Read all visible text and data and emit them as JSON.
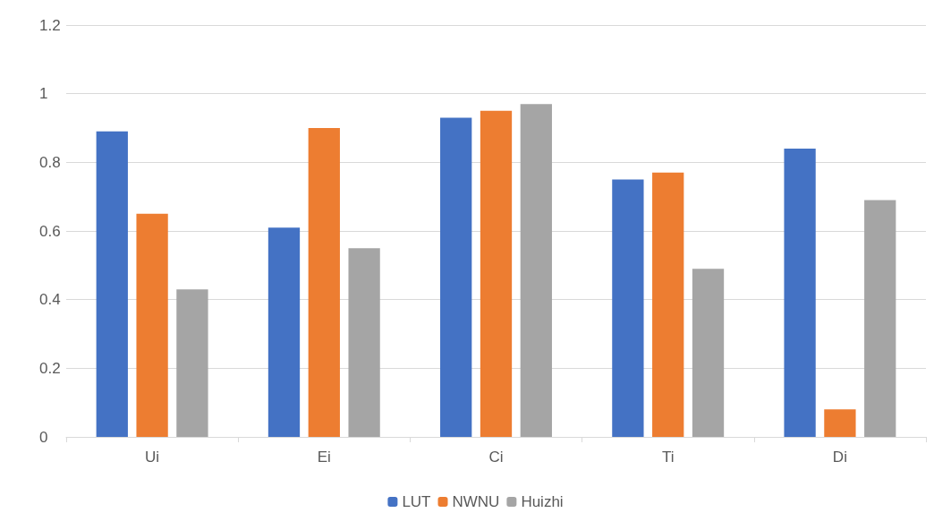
{
  "chart_data": {
    "type": "bar",
    "categories": [
      "Ui",
      "Ei",
      "Ci",
      "Ti",
      "Di"
    ],
    "series": [
      {
        "name": "LUT",
        "color": "#4472c4",
        "values": [
          0.89,
          0.61,
          0.93,
          0.75,
          0.84
        ]
      },
      {
        "name": "NWNU",
        "color": "#ed7d31",
        "values": [
          0.65,
          0.9,
          0.95,
          0.77,
          0.08
        ]
      },
      {
        "name": "Huizhi",
        "color": "#a5a5a5",
        "values": [
          0.43,
          0.55,
          0.97,
          0.49,
          0.69
        ]
      }
    ],
    "ylim": [
      0,
      1.2
    ],
    "yticks": [
      0,
      0.2,
      0.4,
      0.6,
      0.8,
      1,
      1.2
    ],
    "grid": "y",
    "legend": "bottom"
  }
}
